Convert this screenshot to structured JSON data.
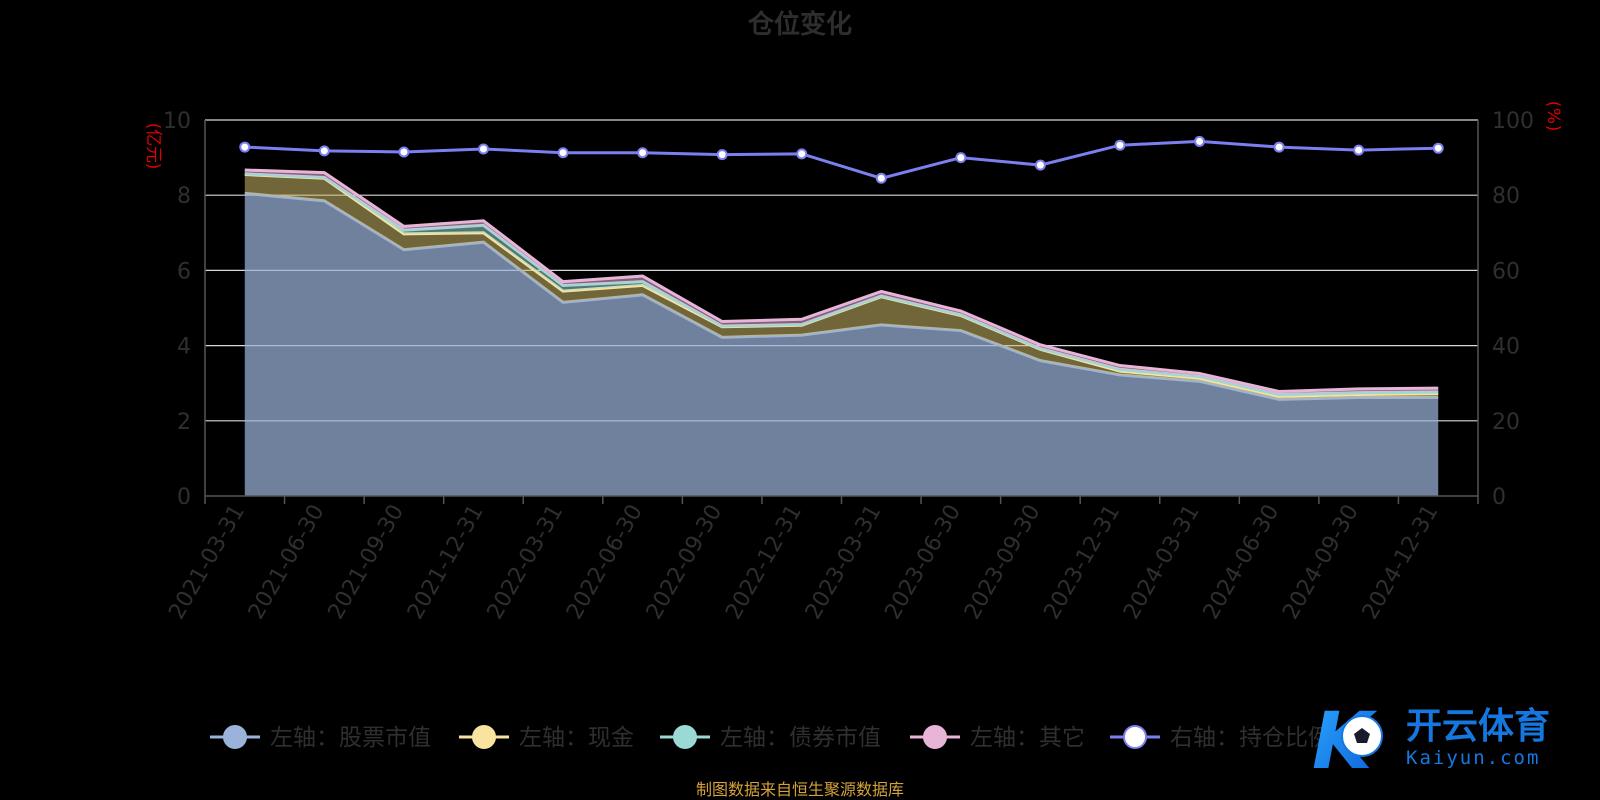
{
  "chart_data": {
    "type": "area",
    "title": "仓位变化",
    "categories": [
      "2021-03-31",
      "2021-06-30",
      "2021-09-30",
      "2021-12-31",
      "2022-03-31",
      "2022-06-30",
      "2022-09-30",
      "2022-12-31",
      "2023-03-31",
      "2023-06-30",
      "2023-09-30",
      "2023-12-31",
      "2024-03-31",
      "2024-06-30",
      "2024-09-30",
      "2024-12-31"
    ],
    "y_left": {
      "label": "亿元",
      "min": 0,
      "max": 10,
      "ticks": [
        0,
        2,
        4,
        6,
        8,
        10
      ]
    },
    "y_right": {
      "label": "%",
      "min": 0,
      "max": 100,
      "ticks": [
        0,
        20,
        40,
        60,
        80,
        100
      ]
    },
    "grid": true,
    "stacked": true,
    "series": [
      {
        "name": "左轴：股票市值",
        "axis": "left",
        "color": "#9bb3da",
        "values": [
          8.05,
          7.85,
          6.55,
          6.75,
          5.15,
          5.35,
          4.22,
          4.28,
          4.55,
          4.4,
          3.6,
          3.22,
          3.05,
          2.57,
          2.62,
          2.62
        ]
      },
      {
        "name": "左轴：现金",
        "axis": "left",
        "color": "#f8e3a0",
        "values": [
          0.5,
          0.6,
          0.42,
          0.25,
          0.3,
          0.25,
          0.28,
          0.26,
          0.75,
          0.4,
          0.3,
          0.1,
          0.08,
          0.08,
          0.08,
          0.1
        ]
      },
      {
        "name": "左轴：债券市值",
        "axis": "left",
        "color": "#9ad9d4",
        "values": [
          0.02,
          0.02,
          0.1,
          0.2,
          0.15,
          0.1,
          0.02,
          0.02,
          0.02,
          0.02,
          0.02,
          0.05,
          0.05,
          0.05,
          0.05,
          0.05
        ]
      },
      {
        "name": "左轴：其它",
        "axis": "left",
        "color": "#e8b4d8",
        "values": [
          0.1,
          0.13,
          0.1,
          0.12,
          0.1,
          0.15,
          0.12,
          0.14,
          0.12,
          0.1,
          0.1,
          0.1,
          0.08,
          0.08,
          0.1,
          0.1
        ]
      },
      {
        "name": "右轴：持仓比例",
        "axis": "right",
        "color": "#7b7ff0",
        "type": "line",
        "values": [
          92.8,
          91.8,
          91.5,
          92.3,
          91.3,
          91.3,
          90.8,
          91.0,
          84.5,
          90.0,
          88.0,
          93.3,
          94.3,
          92.8,
          92.0,
          92.5
        ]
      }
    ],
    "legend_position": "bottom",
    "source_note": "制图数据来自恒生聚源数据库"
  },
  "watermark": {
    "brand": "开云体育",
    "domain": "Kaiyun.com",
    "logo_letter": "K"
  }
}
